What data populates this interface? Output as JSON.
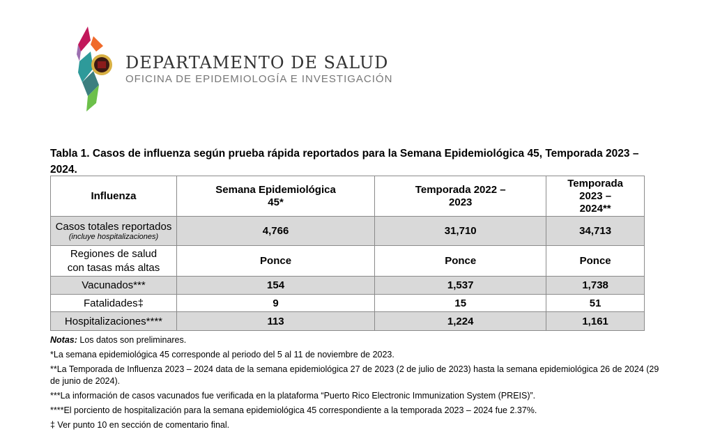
{
  "header": {
    "department": "DEPARTAMENTO DE SALUD",
    "office": "OFICINA DE EPIDEMIOLOGÍA E INVESTIGACIÓN"
  },
  "title": "Tabla 1. Casos de influenza según prueba rápida reportados para la Semana Epidemiológica 45, Temporada 2023 – 2024.",
  "table": {
    "headers": [
      "Influenza",
      "Semana Epidemiológica 45*",
      "Temporada 2022 – 2023",
      "Temporada 2023 – 2024**"
    ],
    "rows": [
      {
        "label": "Casos totales reportados",
        "sublabel": "(incluye hospitalizaciones)",
        "values": [
          "4,766",
          "31,710",
          "34,713"
        ]
      },
      {
        "label": "Regiones de salud con tasas más altas",
        "values": [
          "Ponce",
          "Ponce",
          "Ponce"
        ]
      },
      {
        "label": "Vacunados***",
        "values": [
          "154",
          "1,537",
          "1,738"
        ]
      },
      {
        "label": "Fatalidades‡",
        "values": [
          "9",
          "15",
          "51"
        ]
      },
      {
        "label": "Hospitalizaciones****",
        "values": [
          "113",
          "1,224",
          "1,161"
        ]
      }
    ]
  },
  "notes": {
    "label": "Notas:",
    "first": " Los datos son preliminares.",
    "items": [
      "*La semana epidemiológica 45 corresponde al periodo del 5 al 11 de noviembre de 2023.",
      "**La Temporada de Influenza 2023 – 2024 data de la semana epidemiológica 27 de 2023 (2 de julio de 2023) hasta la semana epidemiológica 26 de 2024 (29 de junio de 2024).",
      "***La información de casos vacunados fue verificada en la plataforma “Puerto Rico Electronic Immunization System (PREIS)”.",
      "****El porciento de hospitalización para la semana epidemiológica 45 correspondiente a la temporada 2023 – 2024 fue 2.37%.",
      "‡ Ver punto 10 en sección de comentario final."
    ]
  }
}
